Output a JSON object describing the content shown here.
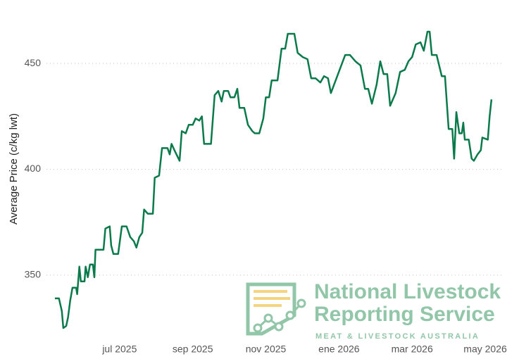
{
  "chart_data": {
    "type": "line",
    "y_label": "Average Price (c/kg lwt)",
    "color": "#0b7a4b",
    "grid": true,
    "xlim": [
      5,
      17.5
    ],
    "xticks": [
      {
        "value": 7,
        "label": "jul 2025"
      },
      {
        "value": 9,
        "label": "sep 2025"
      },
      {
        "value": 11,
        "label": "nov 2025"
      },
      {
        "value": 13,
        "label": "ene 2026"
      },
      {
        "value": 15,
        "label": "mar 2026"
      },
      {
        "value": 17,
        "label": "may 2026"
      }
    ],
    "ylim": [
      320,
      470
    ],
    "yticks": [
      350,
      400,
      450
    ],
    "x": [
      5.23,
      5.34,
      5.42,
      5.46,
      5.54,
      5.59,
      5.65,
      5.71,
      5.81,
      5.84,
      5.9,
      5.94,
      6.04,
      6.07,
      6.13,
      6.19,
      6.27,
      6.31,
      6.34,
      6.56,
      6.61,
      6.73,
      6.77,
      6.83,
      6.96,
      7.06,
      7.19,
      7.29,
      7.39,
      7.46,
      7.54,
      7.62,
      7.67,
      7.77,
      7.91,
      7.96,
      8.08,
      8.16,
      8.31,
      8.37,
      8.42,
      8.5,
      8.64,
      8.7,
      8.81,
      8.89,
      9.0,
      9.08,
      9.18,
      9.25,
      9.31,
      9.5,
      9.6,
      9.7,
      9.79,
      9.85,
      9.97,
      10.03,
      10.14,
      10.22,
      10.28,
      10.41,
      10.51,
      10.63,
      10.7,
      10.82,
      10.93,
      11.0,
      11.09,
      11.16,
      11.32,
      11.43,
      11.53,
      11.6,
      11.78,
      11.87,
      12.01,
      12.14,
      12.24,
      12.36,
      12.49,
      12.59,
      12.7,
      12.78,
      13.17,
      13.3,
      13.45,
      13.59,
      13.71,
      13.8,
      13.9,
      14.03,
      14.13,
      14.22,
      14.32,
      14.4,
      14.55,
      14.67,
      14.8,
      14.9,
      15.0,
      15.1,
      15.23,
      15.32,
      15.42,
      15.48,
      15.54,
      15.67,
      15.81,
      15.9,
      16.0,
      16.1,
      16.15,
      16.21,
      16.29,
      16.36,
      16.4,
      16.44,
      16.55,
      16.63,
      16.69,
      16.79,
      16.88,
      16.92,
      17.07,
      17.12,
      17.17
    ],
    "values": [
      339,
      339,
      333,
      325,
      326,
      330,
      338,
      344,
      344,
      341,
      354,
      347,
      347,
      354,
      349,
      355,
      355,
      349,
      362,
      362,
      372,
      373,
      364,
      360,
      360,
      373,
      373,
      368,
      366,
      363,
      368,
      370,
      381,
      379,
      379,
      396,
      397,
      410,
      410,
      407,
      412,
      409,
      404,
      418,
      417,
      421,
      421,
      424,
      423,
      425,
      412,
      412,
      435,
      437,
      432,
      437,
      437,
      434,
      434,
      438,
      429,
      429,
      421,
      418,
      417,
      417,
      424,
      434,
      434,
      442,
      442,
      457,
      457,
      464,
      464,
      455,
      453,
      452,
      443,
      443,
      441,
      444,
      443,
      436,
      454,
      454,
      451,
      449,
      438,
      438,
      431,
      440,
      451,
      445,
      445,
      430,
      436,
      446,
      447,
      451,
      453,
      459,
      460,
      456,
      465,
      465,
      454,
      454,
      444,
      444,
      419,
      419,
      405,
      427,
      417,
      417,
      422,
      414,
      414,
      405,
      404,
      407,
      409,
      415,
      414,
      425,
      433
    ]
  },
  "logo": {
    "line1": "National Livestock",
    "line2": "Reporting Service",
    "tagline": "MEAT & LIVESTOCK AUSTRALIA"
  }
}
